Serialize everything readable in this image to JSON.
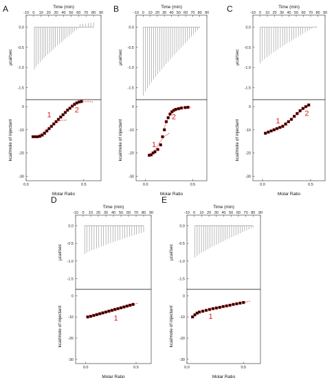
{
  "chart_data": [
    {
      "id": "A",
      "type": "scatter",
      "panel_label": "A",
      "top": {
        "xlabel": "Time (min)",
        "ylabel": "µcal/sec",
        "xlim": [
          -10,
          90
        ],
        "ylim": [
          -1.8,
          0.3
        ],
        "xticks": [
          "-10",
          "0",
          "10",
          "20",
          "30",
          "40",
          "50",
          "60",
          "70",
          "80",
          "90"
        ],
        "yticks": [
          "0.0",
          "-0.5",
          "-1.0",
          "-1.5"
        ],
        "injections": {
          "start": 1,
          "end": 60,
          "count": 24,
          "first_peak": -1.05,
          "last_peak": -0.02,
          "post_start": 62,
          "post_end": 80,
          "post_count": 6,
          "post_peak": 0.12
        }
      },
      "bottom": {
        "xlabel": "Molar Ratio",
        "ylabel": "kcal/mole of injectant",
        "xlim": [
          0,
          0.65
        ],
        "ylim": [
          -32,
          3
        ],
        "xticks": [
          "0.0",
          "0.5"
        ],
        "yticks": [
          "0",
          "-10",
          "-20",
          "-30"
        ],
        "points": {
          "x": [
            0.06,
            0.08,
            0.1,
            0.12,
            0.14,
            0.16,
            0.18,
            0.2,
            0.22,
            0.24,
            0.26,
            0.28,
            0.3,
            0.32,
            0.34,
            0.36,
            0.38,
            0.4,
            0.42,
            0.44,
            0.46,
            0.48
          ],
          "y": [
            -13,
            -13,
            -13,
            -12.8,
            -12.3,
            -11.5,
            -10.5,
            -9.5,
            -8.5,
            -7.5,
            -6.5,
            -5.5,
            -4.5,
            -3.5,
            -2.5,
            -1.5,
            -0.7,
            0.2,
            1,
            1.6,
            2,
            2.2
          ]
        },
        "fit1": {
          "x": [
            0.06,
            0.1,
            0.15,
            0.2,
            0.25,
            0.3,
            0.35
          ],
          "y": [
            -13,
            -12.6,
            -11,
            -9,
            -7,
            -6,
            -5.8
          ]
        },
        "fit2": {
          "x": [
            0.3,
            0.35,
            0.4,
            0.45,
            0.5,
            0.55,
            0.58
          ],
          "y": [
            -5.2,
            -2.5,
            0,
            1.5,
            2.2,
            2.2,
            2
          ]
        },
        "labels": [
          {
            "text": "1",
            "x": 0.2,
            "y": -4.5
          },
          {
            "text": "2",
            "x": 0.44,
            "y": -2.5
          }
        ]
      }
    },
    {
      "id": "B",
      "type": "scatter",
      "panel_label": "B",
      "top": {
        "xlabel": "Time (min)",
        "ylabel": "µcal/sec",
        "xlim": [
          -10,
          90
        ],
        "ylim": [
          -1.8,
          0.3
        ],
        "xticks": [
          "-10",
          "0",
          "10",
          "20",
          "30",
          "40",
          "50",
          "60",
          "70",
          "80",
          "90"
        ],
        "yticks": [
          "0.0",
          "-0.5",
          "-1.0",
          "-1.5"
        ],
        "injections": {
          "start": 0,
          "end": 80,
          "count": 28,
          "first_peak": -1.7,
          "last_peak": -0.02
        }
      },
      "bottom": {
        "xlabel": "Molar Ratio",
        "ylabel": "kcal/mole of injectant",
        "xlim": [
          -0.1,
          0.65
        ],
        "ylim": [
          -32,
          3
        ],
        "xticks": [
          "0.0",
          "0.5"
        ],
        "yticks": [
          "0",
          "-10",
          "-20",
          "-30"
        ],
        "points": {
          "x": [
            0.04,
            0.06,
            0.08,
            0.1,
            0.13,
            0.16,
            0.18,
            0.2,
            0.22,
            0.24,
            0.26,
            0.28,
            0.3,
            0.32,
            0.35,
            0.38,
            0.42,
            0.45
          ],
          "y": [
            -21,
            -20.8,
            -20,
            -19.5,
            -18.5,
            -16.5,
            -13,
            -10,
            -6.5,
            -4.8,
            -3.2,
            -2.2,
            -1.6,
            -1.2,
            -0.9,
            -0.6,
            -0.4,
            -0.3
          ]
        },
        "fit1": {
          "x": [
            0.06,
            0.1,
            0.15,
            0.2,
            0.25
          ],
          "y": [
            -20.5,
            -18.8,
            -15.5,
            -13,
            -11.5
          ]
        },
        "fit2": {
          "x": [
            0.2,
            0.25,
            0.3,
            0.35,
            0.4,
            0.48
          ],
          "y": [
            -9,
            -4,
            -2,
            -1,
            -0.5,
            -0.3
          ]
        },
        "labels": [
          {
            "text": "1",
            "x": 0.09,
            "y": -17.5
          },
          {
            "text": "2",
            "x": 0.3,
            "y": -5.5
          }
        ]
      }
    },
    {
      "id": "C",
      "type": "scatter",
      "panel_label": "C",
      "top": {
        "xlabel": "Time (min)",
        "ylabel": "µcal/sec",
        "xlim": [
          -10,
          90
        ],
        "ylim": [
          -1.8,
          0.3
        ],
        "xticks": [
          "-10",
          "0",
          "10",
          "20",
          "30",
          "40",
          "50",
          "60",
          "70",
          "80",
          "90"
        ],
        "yticks": [
          "0.0",
          "-0.5",
          "-1.0",
          "-1.5"
        ],
        "injections": {
          "start": 0,
          "end": 78,
          "count": 26,
          "first_peak": -0.9,
          "last_peak": 0.03
        }
      },
      "bottom": {
        "xlabel": "Molar Ratio",
        "ylabel": "kcal/mole of injectant",
        "xlim": [
          -0.1,
          0.65
        ],
        "ylim": [
          -32,
          3
        ],
        "xticks": [
          "0.0",
          "0.5"
        ],
        "yticks": [
          "0",
          "-10",
          "-20",
          "-30"
        ],
        "points": {
          "x": [
            0.03,
            0.06,
            0.09,
            0.12,
            0.15,
            0.18,
            0.21,
            0.24,
            0.27,
            0.3,
            0.33,
            0.36,
            0.39,
            0.42,
            0.45,
            0.48
          ],
          "y": [
            -11.5,
            -11,
            -10.5,
            -10,
            -9.5,
            -9,
            -8.5,
            -7.5,
            -6.5,
            -5.5,
            -4.2,
            -3,
            -1.8,
            -0.8,
            0,
            0.7
          ]
        },
        "fit1": {
          "x": [
            0.03,
            0.08,
            0.13,
            0.18,
            0.22,
            0.26
          ],
          "y": [
            -11.5,
            -10.8,
            -9.8,
            -8.8,
            -8.2,
            -8
          ]
        },
        "fit2": {
          "x": [
            0.22,
            0.27,
            0.32,
            0.37,
            0.42,
            0.47,
            0.5
          ],
          "y": [
            -8,
            -6.5,
            -4.5,
            -3,
            -1,
            0,
            0.6
          ]
        },
        "labels": [
          {
            "text": "1",
            "x": 0.16,
            "y": -7.3
          },
          {
            "text": "2",
            "x": 0.46,
            "y": -4
          }
        ]
      }
    },
    {
      "id": "D",
      "type": "scatter",
      "panel_label": "D",
      "top": {
        "xlabel": "Time (min)",
        "ylabel": "µcal/sec",
        "xlim": [
          -10,
          90
        ],
        "ylim": [
          -1.8,
          0.3
        ],
        "xticks": [
          "-10",
          "0",
          "10",
          "20",
          "30",
          "40",
          "50",
          "60",
          "70",
          "80",
          "90"
        ],
        "yticks": [
          "0.0",
          "-0.5",
          "-1.0",
          "-1.5"
        ],
        "injections": {
          "start": 2,
          "end": 80,
          "count": 26,
          "first_peak": -0.8,
          "last_peak": -0.18
        }
      },
      "bottom": {
        "xlabel": "Molar Ratio",
        "ylabel": "kcal/mole of injectant",
        "xlim": [
          -0.1,
          0.65
        ],
        "ylim": [
          -32,
          3
        ],
        "xticks": [
          "0.0",
          "0.5"
        ],
        "yticks": [
          "0",
          "-10",
          "-20",
          "-30"
        ],
        "points": {
          "x": [
            0.02,
            0.05,
            0.08,
            0.11,
            0.14,
            0.17,
            0.2,
            0.23,
            0.26,
            0.29,
            0.32,
            0.35,
            0.38,
            0.41,
            0.44,
            0.47
          ],
          "y": [
            -10,
            -9.7,
            -9.3,
            -8.9,
            -8.5,
            -8.1,
            -7.7,
            -7.3,
            -6.9,
            -6.5,
            -6.1,
            -5.7,
            -5.3,
            -4.9,
            -4.5,
            -4.1
          ]
        },
        "fit1": {
          "x": [
            0.02,
            0.15,
            0.3,
            0.45,
            0.52
          ],
          "y": [
            -10,
            -8.3,
            -6.4,
            -4.4,
            -3.5
          ]
        },
        "labels": [
          {
            "text": "1",
            "x": 0.3,
            "y": -11.8
          }
        ]
      }
    },
    {
      "id": "E",
      "type": "scatter",
      "panel_label": "E",
      "top": {
        "xlabel": "Time (min)",
        "ylabel": "µcal/sec",
        "xlim": [
          -10,
          90
        ],
        "ylim": [
          -1.8,
          0.3
        ],
        "xticks": [
          "-10",
          "0",
          "10",
          "20",
          "30",
          "40",
          "50",
          "60",
          "70",
          "80",
          "90"
        ],
        "yticks": [
          "0.0",
          "-0.5",
          "-1.0",
          "-1.5"
        ],
        "injections": {
          "start": 1,
          "end": 80,
          "count": 28,
          "first_peak": -0.9,
          "last_peak": -0.05
        }
      },
      "bottom": {
        "xlabel": "Molar Ratio",
        "ylabel": "kcal/mole of injectant",
        "xlim": [
          0,
          0.65
        ],
        "ylim": [
          -32,
          3
        ],
        "xticks": [
          "0.0",
          "0.5"
        ],
        "yticks": [
          "0",
          "-10",
          "-20",
          "-30"
        ],
        "points": {
          "x": [
            0.05,
            0.07,
            0.09,
            0.11,
            0.14,
            0.17,
            0.2,
            0.23,
            0.26,
            0.29,
            0.32,
            0.35,
            0.38,
            0.41,
            0.44,
            0.47,
            0.5
          ],
          "y": [
            -10,
            -9,
            -8.2,
            -7.7,
            -7.3,
            -6.9,
            -6.5,
            -6.1,
            -5.8,
            -5.5,
            -5.1,
            -4.8,
            -4.5,
            -4.1,
            -3.8,
            -3.5,
            -3.2
          ]
        },
        "fit1": {
          "x": [
            0.05,
            0.1,
            0.2,
            0.3,
            0.4,
            0.5,
            0.56
          ],
          "y": [
            -10,
            -8,
            -6.5,
            -5.4,
            -4.2,
            -3.2,
            -2.5
          ]
        },
        "labels": [
          {
            "text": "1",
            "x": 0.21,
            "y": -11
          }
        ]
      }
    }
  ]
}
